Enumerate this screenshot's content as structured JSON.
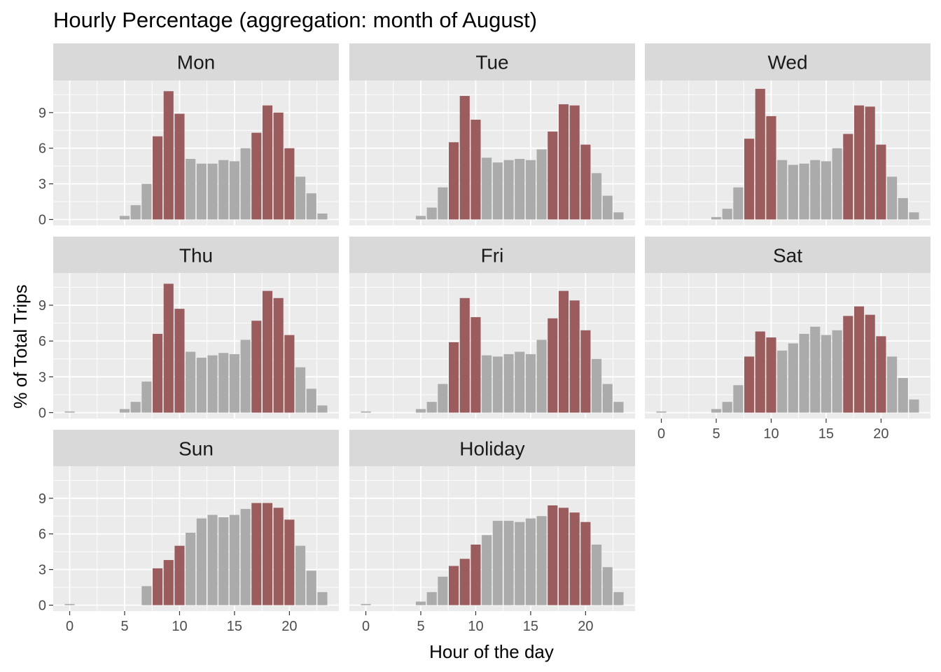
{
  "chart_data": {
    "type": "bar",
    "title": "Hourly Percentage (aggregation: month of August)",
    "xlabel": "Hour of the day",
    "ylabel": "% of Total Trips",
    "x_ticks": [
      0,
      5,
      10,
      15,
      20
    ],
    "y_ticks": [
      0,
      3,
      6,
      9
    ],
    "xlim": [
      -1.5,
      24.5
    ],
    "ylim": [
      -0.5,
      11.7
    ],
    "grid": true,
    "legend": "none",
    "colors": {
      "highlight": "#9b5c5e",
      "normal": "#ababab"
    },
    "hours": [
      0,
      1,
      2,
      3,
      4,
      5,
      6,
      7,
      8,
      9,
      10,
      11,
      12,
      13,
      14,
      15,
      16,
      17,
      18,
      19,
      20,
      21,
      22,
      23
    ],
    "panels": [
      {
        "name": "Mon",
        "values": [
          0,
          0,
          0,
          0,
          0,
          0.3,
          1.2,
          3.0,
          7.0,
          10.8,
          8.9,
          5.1,
          4.7,
          4.7,
          5.0,
          4.9,
          6.0,
          7.3,
          9.6,
          9.0,
          6.0,
          3.6,
          2.2,
          0.5
        ],
        "highlight": [
          0,
          0,
          0,
          0,
          0,
          0,
          0,
          0,
          1,
          1,
          1,
          0,
          0,
          0,
          0,
          0,
          0,
          1,
          1,
          1,
          1,
          0,
          0,
          0
        ]
      },
      {
        "name": "Tue",
        "values": [
          0,
          0,
          0,
          0,
          0,
          0.3,
          1.0,
          2.7,
          6.5,
          10.4,
          8.4,
          5.2,
          4.8,
          5.0,
          5.1,
          5.0,
          5.9,
          7.4,
          9.7,
          9.6,
          6.3,
          3.9,
          2.0,
          0.6
        ],
        "highlight": [
          0,
          0,
          0,
          0,
          0,
          0,
          0,
          0,
          1,
          1,
          1,
          0,
          0,
          0,
          0,
          0,
          0,
          1,
          1,
          1,
          1,
          0,
          0,
          0
        ]
      },
      {
        "name": "Wed",
        "values": [
          0,
          0,
          0,
          0,
          0,
          0.2,
          0.9,
          2.7,
          6.8,
          11.0,
          8.7,
          5.0,
          4.6,
          4.7,
          5.0,
          4.9,
          6.0,
          7.2,
          9.6,
          9.5,
          6.3,
          3.6,
          1.8,
          0.6
        ],
        "highlight": [
          0,
          0,
          0,
          0,
          0,
          0,
          0,
          0,
          1,
          1,
          1,
          0,
          0,
          0,
          0,
          0,
          0,
          1,
          1,
          1,
          1,
          0,
          0,
          0
        ]
      },
      {
        "name": "Thu",
        "values": [
          0.1,
          0,
          0,
          0,
          0,
          0.3,
          0.9,
          2.6,
          6.6,
          10.8,
          8.7,
          5.1,
          4.6,
          4.8,
          5.0,
          4.9,
          6.1,
          7.7,
          10.2,
          9.6,
          6.5,
          3.8,
          2.0,
          0.6
        ],
        "highlight": [
          0,
          0,
          0,
          0,
          0,
          0,
          0,
          0,
          1,
          1,
          1,
          0,
          0,
          0,
          0,
          0,
          0,
          1,
          1,
          1,
          1,
          0,
          0,
          0
        ]
      },
      {
        "name": "Fri",
        "values": [
          0.1,
          0,
          0,
          0,
          0,
          0.3,
          0.9,
          2.4,
          5.9,
          9.6,
          8.0,
          4.8,
          4.7,
          4.9,
          5.1,
          4.9,
          6.1,
          7.9,
          10.2,
          9.4,
          6.9,
          4.5,
          2.4,
          0.9
        ],
        "highlight": [
          0,
          0,
          0,
          0,
          0,
          0,
          0,
          0,
          1,
          1,
          1,
          0,
          0,
          0,
          0,
          0,
          0,
          1,
          1,
          1,
          1,
          0,
          0,
          0
        ]
      },
      {
        "name": "Sat",
        "values": [
          0.1,
          0,
          0,
          0,
          0,
          0.3,
          0.9,
          2.3,
          4.7,
          6.8,
          6.3,
          5.2,
          5.8,
          6.6,
          7.2,
          6.5,
          6.9,
          8.1,
          8.9,
          8.2,
          6.4,
          4.7,
          2.9,
          1.1
        ],
        "highlight": [
          0,
          0,
          0,
          0,
          0,
          0,
          0,
          0,
          1,
          1,
          1,
          0,
          0,
          0,
          0,
          0,
          0,
          1,
          1,
          1,
          1,
          0,
          0,
          0
        ]
      },
      {
        "name": "Sun",
        "values": [
          0.1,
          0,
          0,
          0,
          0,
          0,
          0,
          1.6,
          3.1,
          3.8,
          5.0,
          6.1,
          7.3,
          7.6,
          7.4,
          7.6,
          8.1,
          8.6,
          8.6,
          8.2,
          7.2,
          5.0,
          2.9,
          1.1
        ],
        "highlight": [
          0,
          0,
          0,
          0,
          0,
          0,
          0,
          0,
          1,
          1,
          1,
          0,
          0,
          0,
          0,
          0,
          0,
          1,
          1,
          1,
          1,
          0,
          0,
          0
        ]
      },
      {
        "name": "Holiday",
        "values": [
          0.1,
          0,
          0,
          0,
          0,
          0.3,
          1.1,
          2.4,
          3.3,
          3.9,
          5.1,
          5.9,
          7.1,
          7.1,
          7.0,
          7.3,
          7.5,
          8.4,
          8.2,
          7.8,
          7.0,
          5.1,
          3.2,
          1.1
        ],
        "highlight": [
          0,
          0,
          0,
          0,
          0,
          0,
          0,
          0,
          1,
          1,
          1,
          0,
          0,
          0,
          0,
          0,
          0,
          1,
          1,
          1,
          1,
          0,
          0,
          0
        ]
      }
    ]
  }
}
